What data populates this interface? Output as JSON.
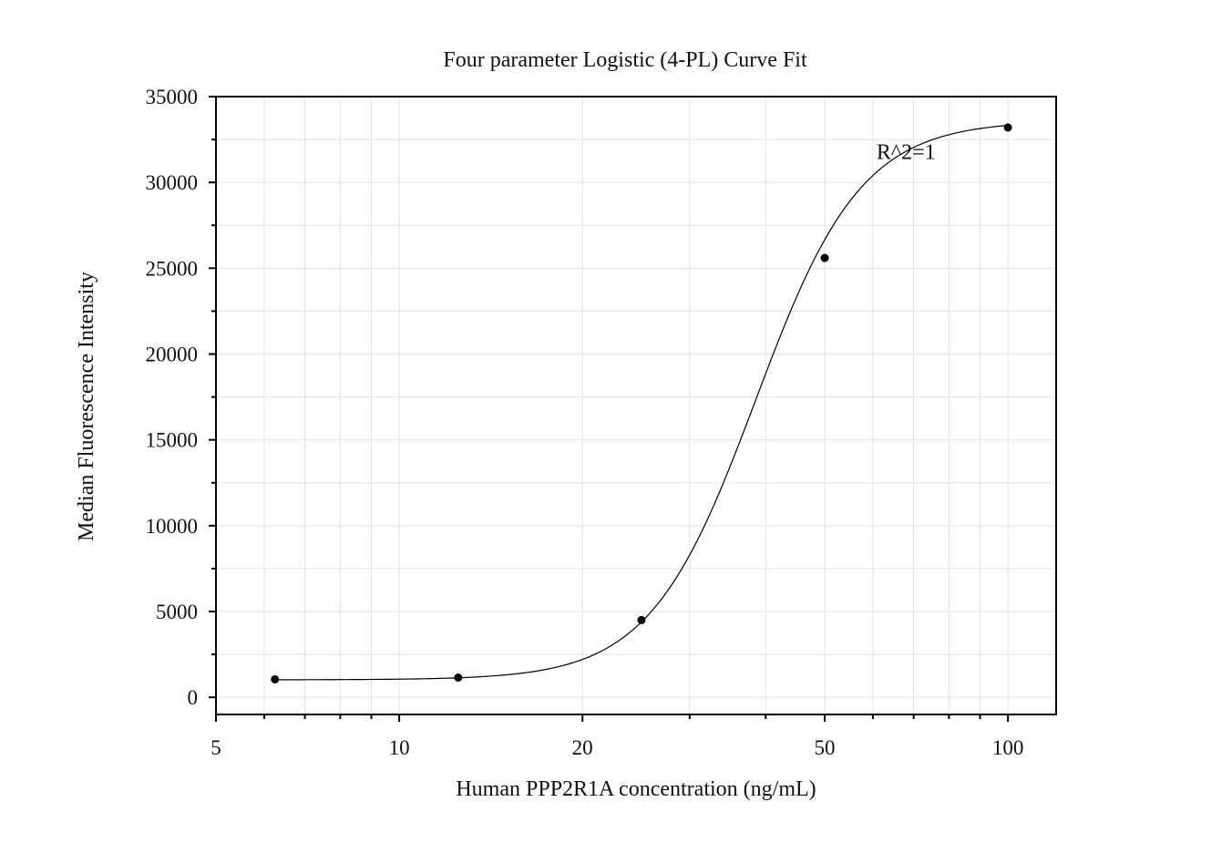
{
  "chart_data": {
    "type": "scatter",
    "title": "Four parameter Logistic (4-PL) Curve Fit",
    "xlabel": "Human PPP2R1A concentration (ng/mL)",
    "ylabel": "Median Fluorescence Intensity",
    "x_scale": "log",
    "xlim": [
      5,
      120
    ],
    "ylim": [
      -1000,
      35000
    ],
    "x_ticks": [
      5,
      10,
      20,
      50,
      100
    ],
    "x_tick_labels": [
      "5",
      "10",
      "20",
      "50",
      "100"
    ],
    "y_ticks": [
      0,
      5000,
      10000,
      15000,
      20000,
      25000,
      30000,
      35000
    ],
    "y_tick_labels": [
      "0",
      "5000",
      "10000",
      "15000",
      "20000",
      "25000",
      "30000",
      "35000"
    ],
    "grid": true,
    "series": [
      {
        "x": [
          6.25,
          12.5,
          25,
          50,
          100
        ],
        "y": [
          1050,
          1150,
          4500,
          25600,
          33200
        ]
      }
    ],
    "fit": {
      "model": "4PL",
      "bottom": 1020,
      "top": 33600,
      "ec50": 38.5,
      "hill": 5.0
    },
    "annotations": [
      {
        "text": "R^2=1",
        "x": 68,
        "y": 31800
      }
    ],
    "colors": {
      "points": "#000000",
      "curve": "#000000",
      "grid": "#e3e3e3",
      "axes": "#000000"
    }
  }
}
